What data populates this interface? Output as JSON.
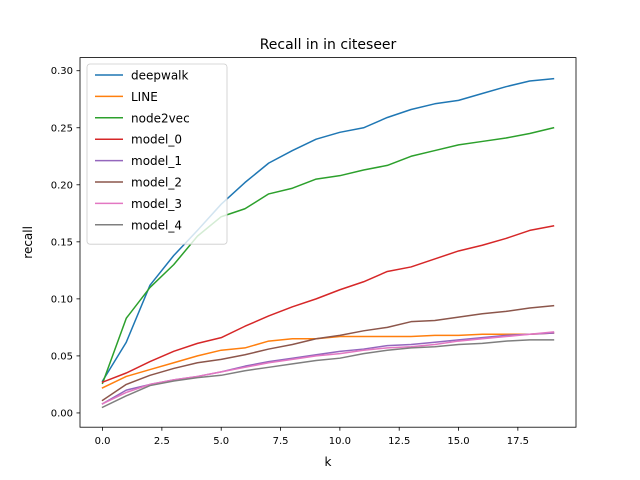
{
  "chart_data": {
    "type": "line",
    "title": "Recall in in citeseer",
    "xlabel": "k",
    "ylabel": "recall",
    "xlim": [
      -0.95,
      19.95
    ],
    "ylim": [
      -0.0125,
      0.3115
    ],
    "xticks": [
      0,
      2.5,
      5,
      7.5,
      10,
      12.5,
      15,
      17.5
    ],
    "xtick_labels": [
      "0.0",
      "2.5",
      "5.0",
      "7.5",
      "10.0",
      "12.5",
      "15.0",
      "17.5"
    ],
    "yticks": [
      0,
      0.05,
      0.1,
      0.15,
      0.2,
      0.25,
      0.3
    ],
    "ytick_labels": [
      "0.00",
      "0.05",
      "0.10",
      "0.15",
      "0.20",
      "0.25",
      "0.30"
    ],
    "grid": false,
    "legend_position": "top-left",
    "x": [
      0,
      1,
      2,
      3,
      4,
      5,
      6,
      7,
      8,
      9,
      10,
      11,
      12,
      13,
      14,
      15,
      16,
      17,
      18,
      19
    ],
    "series": [
      {
        "name": "deepwalk",
        "color": "#1f77b4",
        "values": [
          0.028,
          0.062,
          0.112,
          0.138,
          0.16,
          0.183,
          0.202,
          0.219,
          0.23,
          0.24,
          0.246,
          0.25,
          0.259,
          0.266,
          0.271,
          0.274,
          0.28,
          0.286,
          0.291,
          0.293
        ]
      },
      {
        "name": "LINE",
        "color": "#ff7f0e",
        "values": [
          0.022,
          0.032,
          0.038,
          0.044,
          0.05,
          0.055,
          0.057,
          0.063,
          0.065,
          0.065,
          0.067,
          0.067,
          0.067,
          0.067,
          0.068,
          0.068,
          0.069,
          0.069,
          0.069,
          0.07
        ]
      },
      {
        "name": "node2vec",
        "color": "#2ca02c",
        "values": [
          0.026,
          0.083,
          0.11,
          0.13,
          0.155,
          0.172,
          0.179,
          0.192,
          0.197,
          0.205,
          0.208,
          0.213,
          0.217,
          0.225,
          0.23,
          0.235,
          0.238,
          0.241,
          0.245,
          0.25
        ]
      },
      {
        "name": "model_0",
        "color": "#d62728",
        "values": [
          0.027,
          0.035,
          0.045,
          0.054,
          0.061,
          0.066,
          0.076,
          0.085,
          0.093,
          0.1,
          0.108,
          0.115,
          0.124,
          0.128,
          0.135,
          0.142,
          0.147,
          0.153,
          0.16,
          0.164
        ]
      },
      {
        "name": "model_1",
        "color": "#9467bd",
        "values": [
          0.008,
          0.02,
          0.025,
          0.029,
          0.032,
          0.036,
          0.041,
          0.045,
          0.048,
          0.051,
          0.054,
          0.056,
          0.059,
          0.06,
          0.062,
          0.064,
          0.066,
          0.068,
          0.069,
          0.07
        ]
      },
      {
        "name": "model_2",
        "color": "#8c564b",
        "values": [
          0.011,
          0.025,
          0.033,
          0.039,
          0.044,
          0.047,
          0.051,
          0.056,
          0.06,
          0.065,
          0.068,
          0.072,
          0.075,
          0.08,
          0.081,
          0.084,
          0.087,
          0.089,
          0.092,
          0.094
        ]
      },
      {
        "name": "model_3",
        "color": "#e377c2",
        "values": [
          0.008,
          0.018,
          0.025,
          0.029,
          0.032,
          0.036,
          0.04,
          0.044,
          0.047,
          0.05,
          0.052,
          0.055,
          0.057,
          0.058,
          0.06,
          0.063,
          0.065,
          0.067,
          0.069,
          0.071
        ]
      },
      {
        "name": "model_4",
        "color": "#7f7f7f",
        "values": [
          0.005,
          0.015,
          0.024,
          0.028,
          0.031,
          0.033,
          0.037,
          0.04,
          0.043,
          0.046,
          0.048,
          0.052,
          0.055,
          0.057,
          0.058,
          0.06,
          0.061,
          0.063,
          0.064,
          0.064
        ]
      }
    ]
  }
}
